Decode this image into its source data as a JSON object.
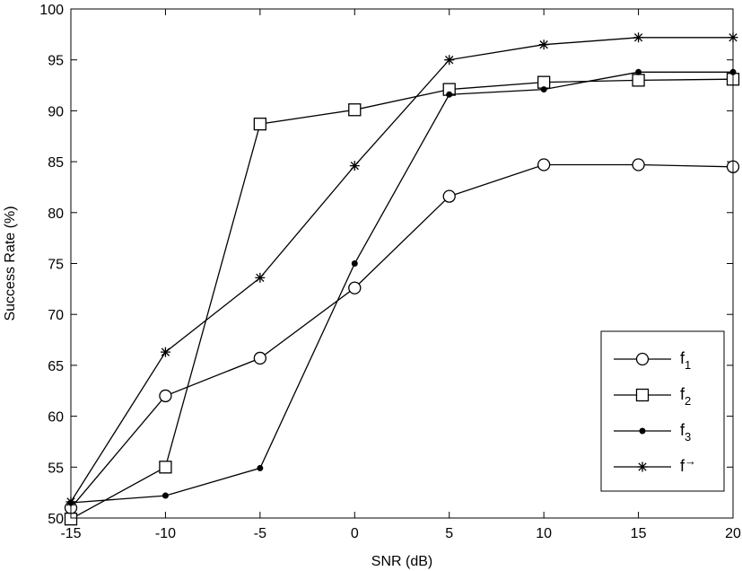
{
  "chart_data": {
    "type": "line",
    "title": "",
    "xlabel": "SNR (dB)",
    "ylabel": "Success Rate (%)",
    "xlim": [
      -15,
      20
    ],
    "ylim": [
      50,
      100
    ],
    "x": [
      -15,
      -10,
      -5,
      0,
      5,
      10,
      15,
      20
    ],
    "x_ticks": [
      "-15",
      "-10",
      "-5",
      "0",
      "5",
      "10",
      "15",
      "20"
    ],
    "y_ticks": [
      "50",
      "55",
      "60",
      "65",
      "70",
      "75",
      "80",
      "85",
      "90",
      "95",
      "100"
    ],
    "grid": false,
    "legend_position": "bottom-right",
    "series": [
      {
        "name": "f",
        "subscript": "1",
        "superscript": "",
        "marker": "circle",
        "values": [
          51.0,
          62.0,
          65.7,
          72.6,
          81.6,
          84.7,
          84.7,
          84.5
        ]
      },
      {
        "name": "f",
        "subscript": "2",
        "superscript": "",
        "marker": "square",
        "values": [
          49.9,
          55.0,
          88.7,
          90.1,
          92.1,
          92.8,
          93.0,
          93.1
        ]
      },
      {
        "name": "f",
        "subscript": "3",
        "superscript": "",
        "marker": "dot",
        "values": [
          51.5,
          52.2,
          54.9,
          75.0,
          91.6,
          92.1,
          93.8,
          93.8
        ]
      },
      {
        "name": "f",
        "subscript": "",
        "superscript": "→",
        "marker": "star",
        "values": [
          51.6,
          66.3,
          73.6,
          84.6,
          95.0,
          96.5,
          97.2,
          97.2
        ]
      }
    ]
  }
}
